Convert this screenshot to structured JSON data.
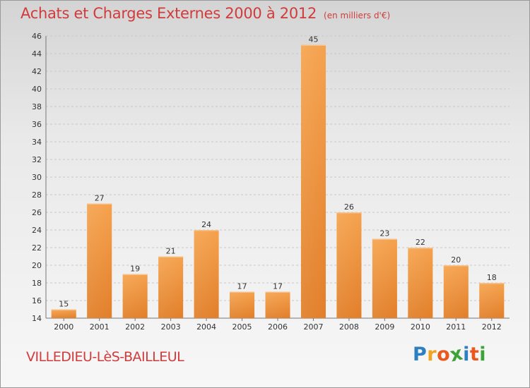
{
  "header": {
    "title": "Achats et Charges Externes 2000 à 2012",
    "unit": "(en milliers d'€)"
  },
  "footer": {
    "place": "VILLEDIEU-LèS-BAILLEUL",
    "logo_letters": [
      "P",
      "r",
      "o",
      "x",
      "i",
      "t",
      "i"
    ],
    "logo_colors": [
      "#2d7fc0",
      "#f0a51e",
      "#e8581f",
      "#3da339",
      "#2d7fc0",
      "#e8581f",
      "#3da339"
    ]
  },
  "colors": {
    "bar_light": "#f5a653",
    "bar_dark": "#d9731e",
    "text": "#d13b3b",
    "grid": "#c8c8c8"
  },
  "chart_data": {
    "type": "bar",
    "title": "Achats et Charges Externes 2000 à 2012",
    "subtitle": "(en milliers d'€)",
    "xlabel": "",
    "ylabel": "",
    "categories": [
      "2000",
      "2001",
      "2002",
      "2003",
      "2004",
      "2005",
      "2006",
      "2007",
      "2008",
      "2009",
      "2010",
      "2011",
      "2012"
    ],
    "values": [
      15,
      27,
      19,
      21,
      24,
      17,
      17,
      45,
      26,
      23,
      22,
      20,
      18
    ],
    "value_labels": [
      "15",
      "27",
      "19",
      "21",
      "24",
      "17",
      "17",
      "45",
      "26",
      "23",
      "22",
      "20",
      "18"
    ],
    "ylim": [
      14,
      46
    ],
    "yticks": [
      14,
      16,
      18,
      20,
      22,
      24,
      26,
      28,
      30,
      32,
      34,
      36,
      38,
      40,
      42,
      44,
      46
    ],
    "grid": true,
    "legend": "none"
  }
}
